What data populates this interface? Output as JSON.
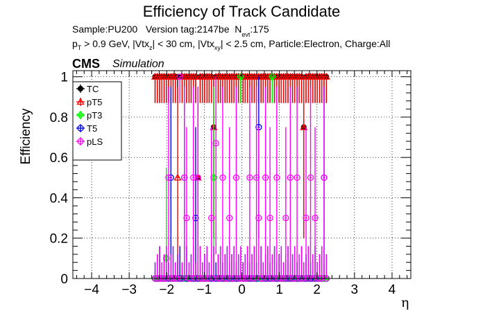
{
  "title": "Efficiency of Track Candidate",
  "info": {
    "sample_label": "Sample:PU200",
    "version_label": "Version tag:2147be",
    "nevt_prefix": "N",
    "nevt_sub": "evt",
    "nevt_value": ":175",
    "cuts_p": "p",
    "cuts_p_sub": "T",
    "cuts_part1": " > 0.9 GeV, |Vtx",
    "cuts_z_sub": "z",
    "cuts_part2": "| < 30 cm, |Vtx",
    "cuts_xy_sub": "xy",
    "cuts_part3": "| < 2.5 cm, Particle:Electron, Charge:All"
  },
  "cms_label": "CMS",
  "simulation_label": "Simulation",
  "chart_data": {
    "type": "scatter",
    "title": "Efficiency of Track Candidate",
    "xlabel": "η",
    "ylabel": "Efficiency",
    "xlim": [
      -4.5,
      4.5
    ],
    "ylim": [
      0,
      1.03
    ],
    "x_ticks": [
      -4,
      -3,
      -2,
      -1,
      0,
      1,
      2,
      3,
      4
    ],
    "y_ticks": [
      0,
      0.2,
      0.4,
      0.6,
      0.8,
      1
    ],
    "grid": true,
    "legend_position": "top-left",
    "bin_width": 0.06,
    "x": [
      -2.31,
      -2.25,
      -2.19,
      -2.13,
      -2.07,
      -2.01,
      -1.95,
      -1.89,
      -1.83,
      -1.77,
      -1.71,
      -1.65,
      -1.59,
      -1.53,
      -1.47,
      -1.41,
      -1.35,
      -1.29,
      -1.23,
      -1.17,
      -1.11,
      -1.05,
      -0.99,
      -0.93,
      -0.87,
      -0.81,
      -0.75,
      -0.69,
      -0.63,
      -0.57,
      -0.51,
      -0.45,
      -0.39,
      -0.33,
      -0.27,
      -0.21,
      -0.15,
      -0.09,
      -0.03,
      0.03,
      0.09,
      0.15,
      0.21,
      0.27,
      0.33,
      0.39,
      0.45,
      0.51,
      0.57,
      0.63,
      0.69,
      0.75,
      0.81,
      0.87,
      0.93,
      0.99,
      1.05,
      1.11,
      1.17,
      1.23,
      1.29,
      1.35,
      1.41,
      1.47,
      1.53,
      1.59,
      1.65,
      1.71,
      1.77,
      1.83,
      1.89,
      1.95,
      2.01,
      2.07,
      2.13,
      2.19,
      2.25
    ],
    "series": [
      {
        "name": "TC",
        "color": "#000000",
        "marker": "filled-circle",
        "values": [
          1,
          1,
          1,
          1,
          1,
          1,
          1,
          1,
          1,
          1,
          1,
          0,
          1,
          1,
          1,
          1,
          1,
          1,
          1,
          0.5,
          1,
          1,
          1,
          1,
          1,
          1,
          0.75,
          1,
          1,
          1,
          1,
          1,
          1,
          1,
          1,
          1,
          1,
          1,
          1,
          1,
          1,
          1,
          1,
          1,
          1,
          1,
          1,
          1,
          1,
          1,
          1,
          1,
          1,
          1,
          1,
          1,
          1,
          1,
          1,
          1,
          1,
          1,
          1,
          1,
          1,
          1,
          0.75,
          1,
          1,
          1,
          1,
          1,
          1,
          1,
          1,
          1,
          1
        ]
      },
      {
        "name": "pT5",
        "color": "#ff0000",
        "marker": "open-triangle",
        "values": [
          1,
          1,
          1,
          1,
          1,
          1,
          1,
          1,
          1,
          1,
          0.5,
          0,
          1,
          1,
          1,
          1,
          1,
          1,
          1,
          0.5,
          1,
          1,
          1,
          1,
          1,
          1,
          0.75,
          1,
          1,
          1,
          1,
          1,
          1,
          1,
          1,
          1,
          1,
          1,
          1,
          1,
          1,
          1,
          1,
          1,
          1,
          1,
          1,
          1,
          1,
          1,
          1,
          1,
          1,
          1,
          1,
          1,
          1,
          1,
          1,
          1,
          1,
          1,
          1,
          1,
          1,
          1,
          0.75,
          1,
          1,
          1,
          1,
          1,
          1,
          1,
          1,
          1,
          1
        ]
      },
      {
        "name": "pT3",
        "color": "#00ff00",
        "marker": "open-cross",
        "values": [
          0,
          0,
          0,
          0,
          0,
          0.1,
          0,
          0,
          0,
          0,
          0,
          0,
          0,
          0,
          0,
          0,
          0,
          0,
          0,
          0,
          0,
          0,
          0,
          0,
          0,
          0,
          0.5,
          0,
          0,
          0,
          0,
          0,
          0,
          0,
          0,
          0,
          0,
          0,
          1,
          0,
          0,
          0,
          0,
          0,
          0,
          0,
          0,
          0,
          0,
          0,
          0,
          0,
          1,
          0,
          0,
          0,
          0,
          0,
          0,
          0,
          0,
          0,
          0,
          0,
          0,
          0,
          0,
          0,
          0,
          0,
          0,
          0,
          0,
          0,
          0,
          0,
          0
        ]
      },
      {
        "name": "T5",
        "color": "#0000ff",
        "marker": "open-circle",
        "values": [
          0,
          0,
          0,
          0,
          0,
          0,
          0,
          0.5,
          0,
          0,
          0,
          0,
          0,
          0.5,
          0,
          0,
          0,
          0,
          0.3,
          0,
          0,
          0,
          0,
          0,
          0,
          0,
          0,
          0,
          0,
          0,
          0,
          0,
          0,
          0,
          0,
          0,
          0,
          0,
          0,
          0,
          0,
          0,
          0,
          0,
          0,
          0,
          0.75,
          0,
          0,
          0,
          0,
          0,
          0,
          0,
          0,
          0,
          0,
          0,
          0,
          0,
          0,
          0,
          0,
          0,
          0,
          0,
          0,
          0,
          0,
          0,
          0,
          0,
          0,
          0,
          0,
          0.5,
          0
        ]
      },
      {
        "name": "pLS",
        "color": "#ff00ff",
        "marker": "open-circle",
        "values": [
          0,
          0,
          0,
          0,
          0,
          0,
          0.5,
          0,
          0,
          0,
          0,
          1,
          0,
          0.5,
          0.3,
          0,
          0,
          0.5,
          0,
          0.5,
          0,
          0,
          0,
          0,
          0,
          0.3,
          0,
          0.67,
          0,
          0,
          0.5,
          0,
          0,
          0.3,
          0,
          0,
          0.5,
          0,
          0,
          0,
          0,
          0,
          0.5,
          0,
          0,
          0.5,
          0.3,
          0,
          0,
          0.5,
          0,
          0.3,
          0,
          0,
          0.5,
          0,
          0,
          0,
          0.3,
          0,
          0.5,
          0,
          0,
          0.5,
          0,
          0,
          0,
          0.3,
          0,
          0.5,
          0,
          0.3,
          0,
          0,
          0,
          0.5,
          0
        ]
      }
    ]
  }
}
